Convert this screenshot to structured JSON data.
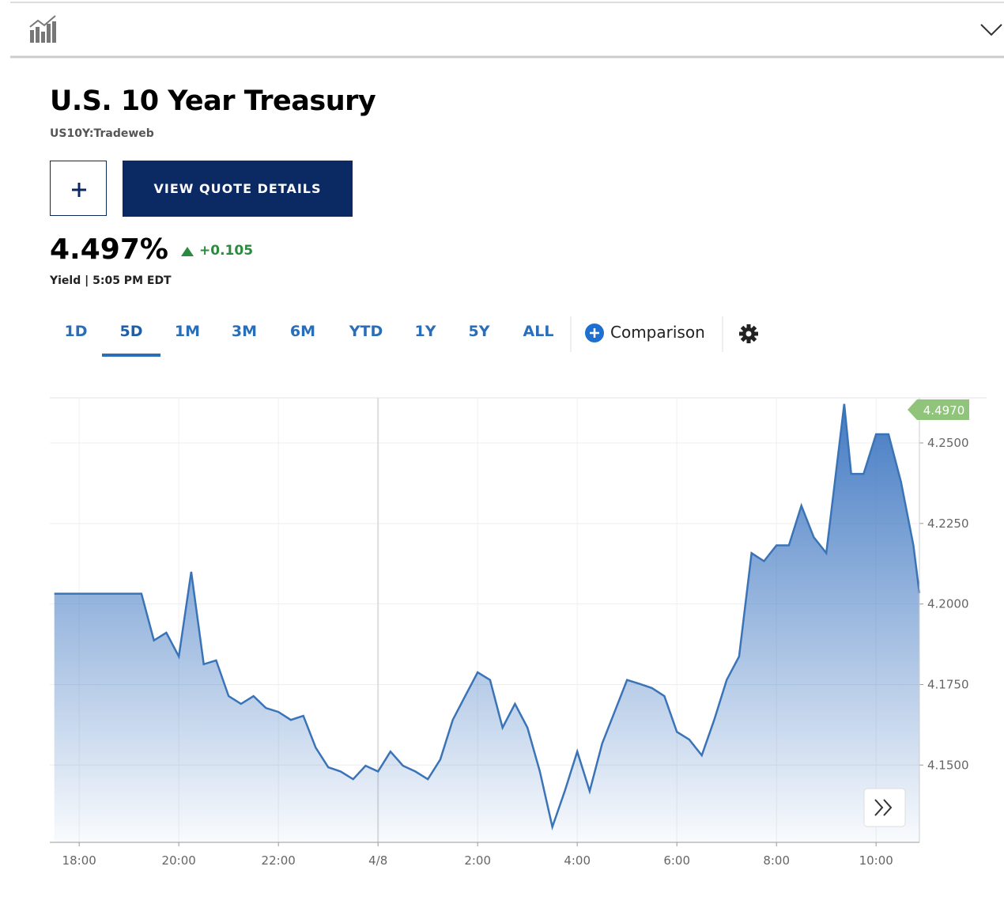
{
  "header": {
    "title": "U.S. 10 Year Treasury",
    "symbol": "US10Y:Tradeweb",
    "button": "VIEW QUOTE DETAILS"
  },
  "quote": {
    "price": "4.497%",
    "change": "+0.105",
    "meta": "Yield | 5:05 PM EDT"
  },
  "tabs": {
    "items": [
      "1D",
      "5D",
      "1M",
      "3M",
      "6M",
      "YTD",
      "1Y",
      "5Y",
      "ALL"
    ],
    "active": 1,
    "comparison": "Comparison"
  },
  "chart_data": {
    "type": "area",
    "color": "#3a74b7",
    "x": [
      17.5,
      17.75,
      18,
      18.25,
      18.5,
      18.75,
      19,
      19.25,
      19.5,
      19.75,
      20,
      20.25,
      20.5,
      20.75,
      21,
      21.25,
      21.5,
      21.75,
      22,
      22.25,
      22.5,
      22.75,
      23,
      23.25,
      23.5,
      23.75,
      24,
      24.25,
      24.5,
      24.75,
      25,
      25.25,
      25.5,
      25.75,
      26,
      26.25,
      26.5,
      26.75,
      27,
      27.25,
      27.5,
      27.75,
      28,
      28.25,
      28.5,
      28.75,
      29,
      29.25,
      29.5,
      29.75,
      30,
      30.25,
      30.5,
      30.75,
      31,
      31.25,
      31.5,
      31.75,
      32,
      32.25,
      32.5,
      32.75,
      33,
      33.25,
      33.36,
      33.5,
      33.75,
      34,
      34.25,
      34.5,
      34.75,
      34.87
    ],
    "values": [
      4.2032,
      4.2032,
      4.2032,
      4.2032,
      4.2032,
      4.2032,
      4.2032,
      4.2032,
      4.1887,
      4.1911,
      4.1837,
      4.21,
      4.1813,
      4.1825,
      4.1714,
      4.169,
      4.1714,
      4.1677,
      4.1665,
      4.164,
      4.1653,
      4.1554,
      4.1493,
      4.148,
      4.1456,
      4.1498,
      4.148,
      4.1542,
      4.1498,
      4.148,
      4.1456,
      4.1517,
      4.164,
      4.1714,
      4.1788,
      4.1764,
      4.1616,
      4.169,
      4.1616,
      4.148,
      4.1308,
      4.1419,
      4.1542,
      4.1419,
      4.1567,
      4.1665,
      4.1764,
      4.1752,
      4.1739,
      4.1714,
      4.1603,
      4.1579,
      4.153,
      4.164,
      4.1764,
      4.1837,
      4.2158,
      4.2133,
      4.2182,
      4.2182,
      4.2305,
      4.2207,
      4.2158,
      4.2478,
      4.2621,
      4.2404,
      4.2404,
      4.2527,
      4.2527,
      4.2379,
      4.2182,
      4.2034
    ],
    "xlim": [
      17.41,
      34.87
    ],
    "xticks": [
      {
        "value": 18,
        "label": "18:00"
      },
      {
        "value": 20,
        "label": "20:00"
      },
      {
        "value": 22,
        "label": "22:00"
      },
      {
        "value": 24,
        "label": "4/8"
      },
      {
        "value": 26,
        "label": "2:00"
      },
      {
        "value": 28,
        "label": "4:00"
      },
      {
        "value": 30,
        "label": "6:00"
      },
      {
        "value": 32,
        "label": "8:00"
      },
      {
        "value": 34,
        "label": "10:00"
      }
    ],
    "ylim": [
      4.126,
      4.264
    ],
    "yticks": [
      {
        "value": 4.15,
        "label": "4.1500"
      },
      {
        "value": 4.175,
        "label": "4.1750"
      },
      {
        "value": 4.2,
        "label": "4.2000"
      },
      {
        "value": 4.225,
        "label": "4.2250"
      },
      {
        "value": 4.25,
        "label": "4.2500"
      }
    ],
    "current_label": "4.4970",
    "grid": true
  }
}
